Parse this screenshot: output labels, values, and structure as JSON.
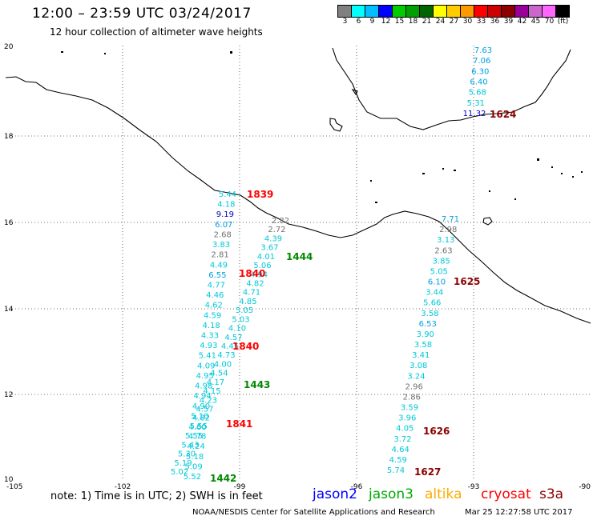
{
  "header": {
    "title": "12:00 – 23:59 UTC 03/24/2017",
    "subtitle": "12 hour collection of altimeter wave heights"
  },
  "legend": {
    "colors": [
      "#808080",
      "#00ffff",
      "#00bfff",
      "#0000ff",
      "#00cc00",
      "#00a000",
      "#006400",
      "#ffff00",
      "#ffcc00",
      "#ff9900",
      "#ff0000",
      "#cc0000",
      "#8b0000",
      "#990099",
      "#cc66cc",
      "#ff66ff",
      "#000000"
    ],
    "labels": [
      "3",
      "6",
      "9",
      "12",
      "15",
      "18",
      "21",
      "24",
      "27",
      "30",
      "33",
      "36",
      "39",
      "42",
      "45",
      "70",
      "(ft)"
    ]
  },
  "axes": {
    "x_ticks": [
      "-105",
      "-102",
      "-99",
      "-96",
      "-93",
      "-90"
    ],
    "y_ticks": [
      "20",
      "18",
      "16",
      "14",
      "12",
      "10"
    ]
  },
  "passes": [
    {
      "time": "1839",
      "color": "#ff0000"
    },
    {
      "time": "1444",
      "color": "#008800"
    },
    {
      "time": "1840",
      "color": "#ff0000"
    },
    {
      "time": "1840",
      "color": "#ff0000"
    },
    {
      "time": "1443",
      "color": "#008800"
    },
    {
      "time": "1841",
      "color": "#ff0000"
    },
    {
      "time": "1442",
      "color": "#008800"
    },
    {
      "time": "1624",
      "color": "#8b0000"
    },
    {
      "time": "1625",
      "color": "#8b0000"
    },
    {
      "time": "1626",
      "color": "#8b0000"
    },
    {
      "time": "1627",
      "color": "#8b0000"
    }
  ],
  "tracks": {
    "track_a": [
      "5.44",
      "4.18",
      "9.19",
      "6.07",
      "2.68",
      "3.83",
      "2.81",
      "4.49",
      "6.55",
      "4.77",
      "4.46",
      "4.62",
      "4.59",
      "4.18",
      "4.33",
      "4.93",
      "5.41",
      "4.09",
      "4.95",
      "4.98",
      "4.94",
      "4.90",
      "5.10",
      "5.55",
      "4.78",
      "4.24",
      "5.18",
      "5.09",
      "5.52"
    ],
    "track_b": [
      "2.82",
      "2.72",
      "4.39",
      "3.67",
      "4.01",
      "5.06",
      "4.94",
      "4.82",
      "4.71",
      "4.85",
      "5.05",
      "5.03",
      "4.10",
      "4.57",
      "4.45",
      "4.73",
      "4.00",
      "4.54",
      "4.17",
      "4.15",
      "4.23",
      "4.57",
      "4.82",
      "4.60",
      "5.55",
      "5.43",
      "5.30",
      "5.19",
      "5.02"
    ],
    "track_c": [
      "7.63",
      "7.06",
      "6.30",
      "6.40",
      "5.68",
      "5.31",
      "11.32"
    ],
    "track_d": [
      "7.71",
      "2.98",
      "3.13",
      "2.63",
      "3.85",
      "5.05",
      "6.10",
      "3.44",
      "5.66",
      "3.58",
      "6.53",
      "3.90",
      "3.58",
      "3.41",
      "3.08",
      "3.24",
      "2.96",
      "2.86",
      "3.59",
      "3.96",
      "4.05",
      "3.72",
      "4.64",
      "4.59",
      "5.74"
    ]
  },
  "footer": {
    "note": "note: 1) Time is in UTC; 2) SWH is in feet",
    "satellites": [
      {
        "name": "jason2",
        "color": "#0000ff"
      },
      {
        "name": "jason3",
        "color": "#00aa00"
      },
      {
        "name": "altika",
        "color": "#ffaa00"
      },
      {
        "name": "cryosat",
        "color": "#ff0000"
      },
      {
        "name": "s3a",
        "color": "#8b0000"
      }
    ],
    "credit": "NOAA/NESDIS Center for Satellite Applications and Research",
    "timestamp": "Mar 25 12:27:58 UTC 2017"
  }
}
